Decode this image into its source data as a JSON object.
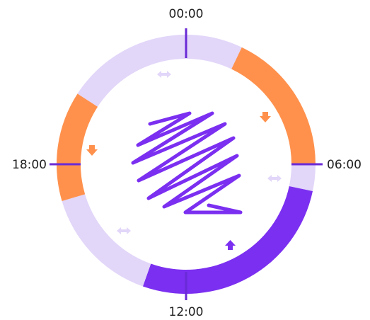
{
  "labels": {
    "top": "00:00",
    "right": "06:00",
    "bottom": "12:00",
    "left": "18:00"
  },
  "segments": [
    {
      "start": 20.2,
      "end": 1.7,
      "color": "#e2d6f9"
    },
    {
      "start": 1.7,
      "end": 6.0,
      "color": "#ff914d"
    },
    {
      "start": 6.0,
      "end": 6.8,
      "color": "#e2d6f9"
    },
    {
      "start": 6.8,
      "end": 13.3,
      "color": "#7b2ff0"
    },
    {
      "start": 13.3,
      "end": 16.9,
      "color": "#e2d6f9"
    },
    {
      "start": 16.9,
      "end": 20.2,
      "color": "#ff914d"
    }
  ]
}
